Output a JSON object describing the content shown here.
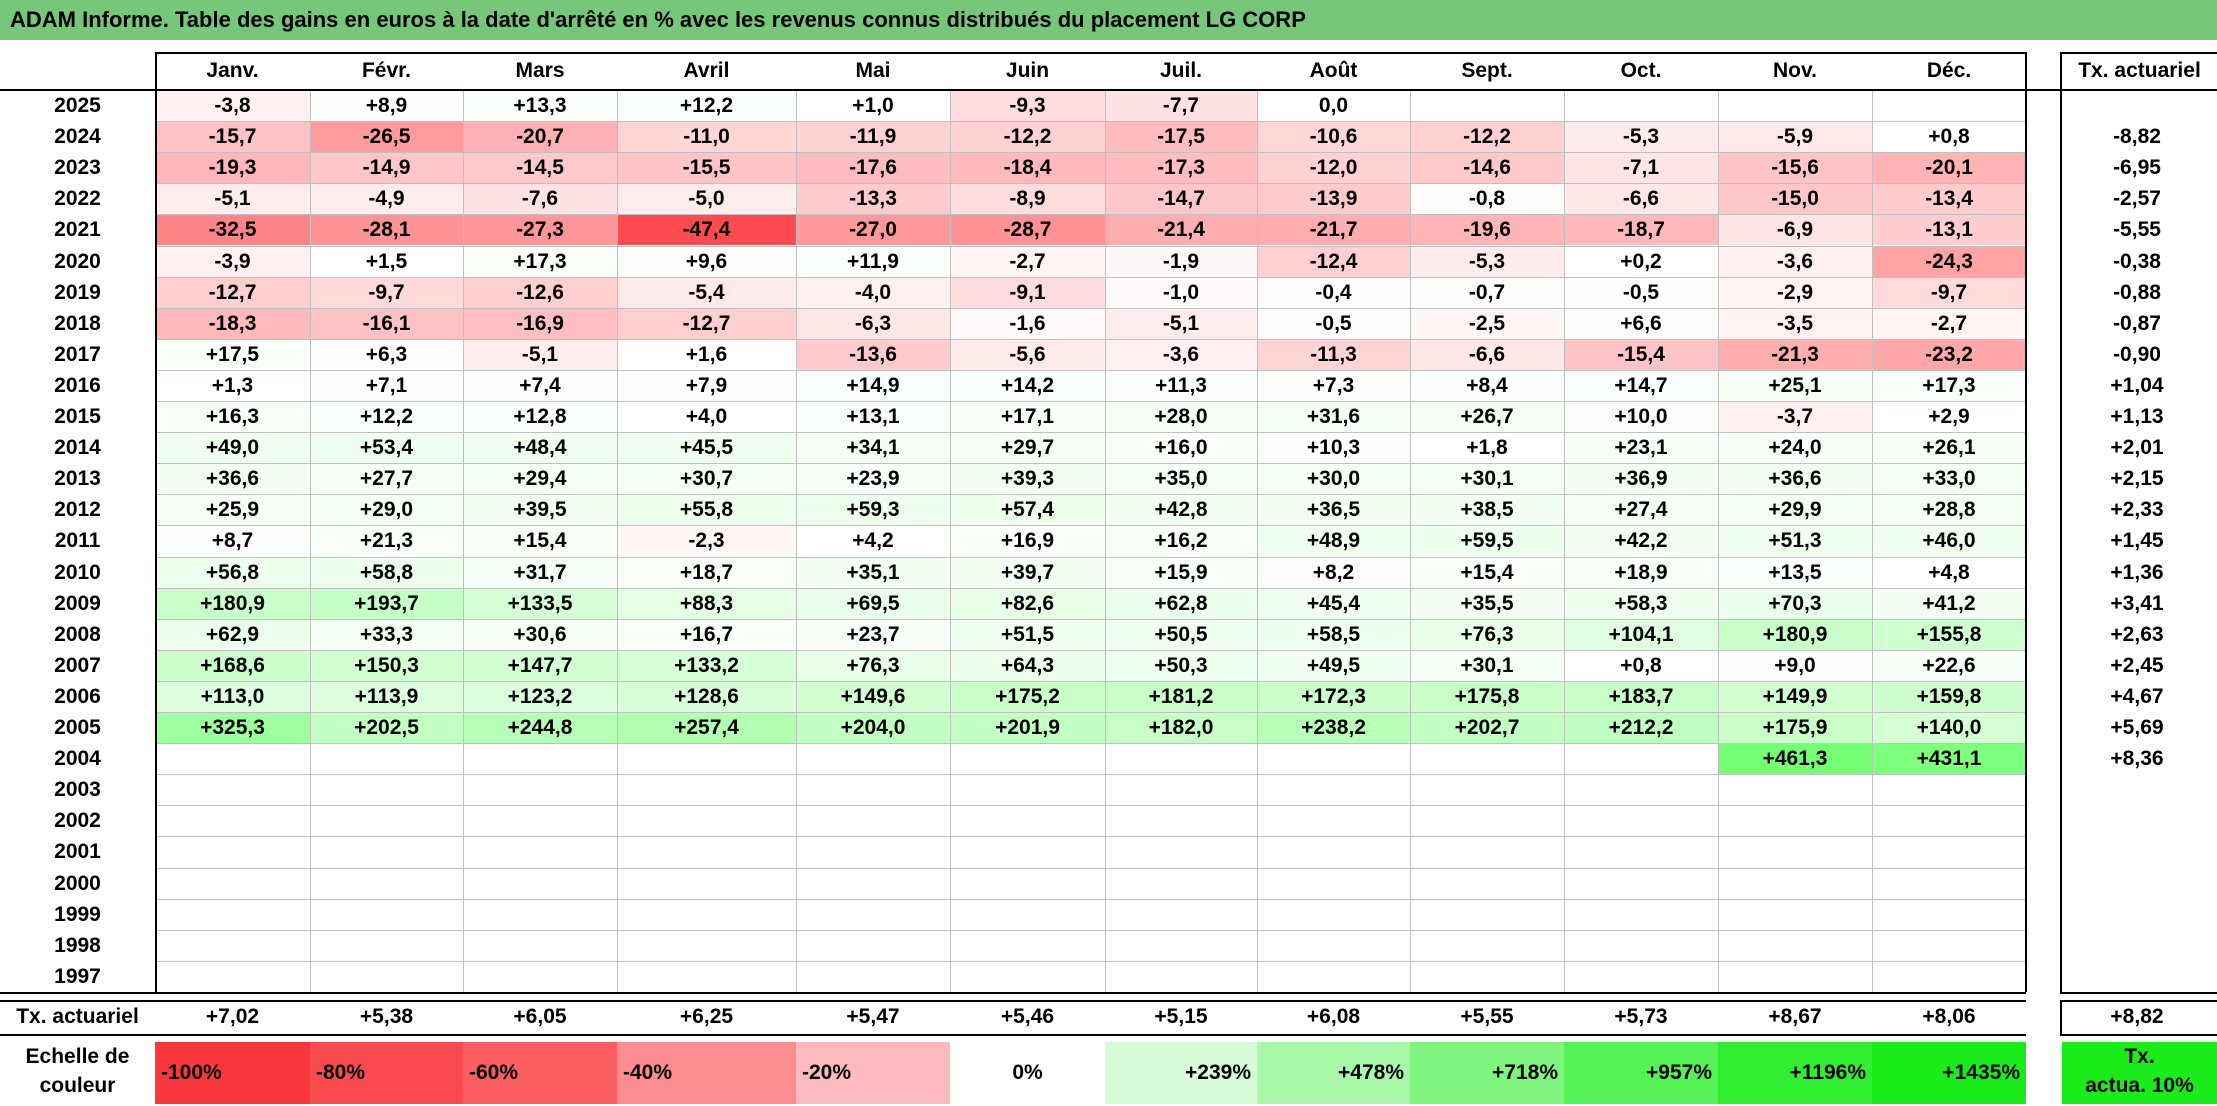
{
  "title": "ADAM Informe. Table des gains en euros à la date d'arrêté en % avec les revenus connus distribués du placement LG CORP",
  "months": [
    "Janv.",
    "Févr.",
    "Mars",
    "Avril",
    "Mai",
    "Juin",
    "Juil.",
    "Août",
    "Sept.",
    "Oct.",
    "Nov.",
    "Déc."
  ],
  "actuarial_header": "Tx. actuariel",
  "rows": [
    {
      "year": "2025",
      "values": [
        "-3,8",
        "+8,9",
        "+13,3",
        "+12,2",
        "+1,0",
        "-9,3",
        "-7,7",
        "0,0",
        "",
        "",
        "",
        ""
      ],
      "rate": ""
    },
    {
      "year": "2024",
      "values": [
        "-15,7",
        "-26,5",
        "-20,7",
        "-11,0",
        "-11,9",
        "-12,2",
        "-17,5",
        "-10,6",
        "-12,2",
        "-5,3",
        "-5,9",
        "+0,8"
      ],
      "rate": "-8,82"
    },
    {
      "year": "2023",
      "values": [
        "-19,3",
        "-14,9",
        "-14,5",
        "-15,5",
        "-17,6",
        "-18,4",
        "-17,3",
        "-12,0",
        "-14,6",
        "-7,1",
        "-15,6",
        "-20,1"
      ],
      "rate": "-6,95"
    },
    {
      "year": "2022",
      "values": [
        "-5,1",
        "-4,9",
        "-7,6",
        "-5,0",
        "-13,3",
        "-8,9",
        "-14,7",
        "-13,9",
        "-0,8",
        "-6,6",
        "-15,0",
        "-13,4"
      ],
      "rate": "-2,57"
    },
    {
      "year": "2021",
      "values": [
        "-32,5",
        "-28,1",
        "-27,3",
        "-47,4",
        "-27,0",
        "-28,7",
        "-21,4",
        "-21,7",
        "-19,6",
        "-18,7",
        "-6,9",
        "-13,1"
      ],
      "rate": "-5,55"
    },
    {
      "year": "2020",
      "values": [
        "-3,9",
        "+1,5",
        "+17,3",
        "+9,6",
        "+11,9",
        "-2,7",
        "-1,9",
        "-12,4",
        "-5,3",
        "+0,2",
        "-3,6",
        "-24,3"
      ],
      "rate": "-0,38"
    },
    {
      "year": "2019",
      "values": [
        "-12,7",
        "-9,7",
        "-12,6",
        "-5,4",
        "-4,0",
        "-9,1",
        "-1,0",
        "-0,4",
        "-0,7",
        "-0,5",
        "-2,9",
        "-9,7"
      ],
      "rate": "-0,88"
    },
    {
      "year": "2018",
      "values": [
        "-18,3",
        "-16,1",
        "-16,9",
        "-12,7",
        "-6,3",
        "-1,6",
        "-5,1",
        "-0,5",
        "-2,5",
        "+6,6",
        "-3,5",
        "-2,7"
      ],
      "rate": "-0,87"
    },
    {
      "year": "2017",
      "values": [
        "+17,5",
        "+6,3",
        "-5,1",
        "+1,6",
        "-13,6",
        "-5,6",
        "-3,6",
        "-11,3",
        "-6,6",
        "-15,4",
        "-21,3",
        "-23,2"
      ],
      "rate": "-0,90"
    },
    {
      "year": "2016",
      "values": [
        "+1,3",
        "+7,1",
        "+7,4",
        "+7,9",
        "+14,9",
        "+14,2",
        "+11,3",
        "+7,3",
        "+8,4",
        "+14,7",
        "+25,1",
        "+17,3"
      ],
      "rate": "+1,04"
    },
    {
      "year": "2015",
      "values": [
        "+16,3",
        "+12,2",
        "+12,8",
        "+4,0",
        "+13,1",
        "+17,1",
        "+28,0",
        "+31,6",
        "+26,7",
        "+10,0",
        "-3,7",
        "+2,9"
      ],
      "rate": "+1,13"
    },
    {
      "year": "2014",
      "values": [
        "+49,0",
        "+53,4",
        "+48,4",
        "+45,5",
        "+34,1",
        "+29,7",
        "+16,0",
        "+10,3",
        "+1,8",
        "+23,1",
        "+24,0",
        "+26,1"
      ],
      "rate": "+2,01"
    },
    {
      "year": "2013",
      "values": [
        "+36,6",
        "+27,7",
        "+29,4",
        "+30,7",
        "+23,9",
        "+39,3",
        "+35,0",
        "+30,0",
        "+30,1",
        "+36,9",
        "+36,6",
        "+33,0"
      ],
      "rate": "+2,15"
    },
    {
      "year": "2012",
      "values": [
        "+25,9",
        "+29,0",
        "+39,5",
        "+55,8",
        "+59,3",
        "+57,4",
        "+42,8",
        "+36,5",
        "+38,5",
        "+27,4",
        "+29,9",
        "+28,8"
      ],
      "rate": "+2,33"
    },
    {
      "year": "2011",
      "values": [
        "+8,7",
        "+21,3",
        "+15,4",
        "-2,3",
        "+4,2",
        "+16,9",
        "+16,2",
        "+48,9",
        "+59,5",
        "+42,2",
        "+51,3",
        "+46,0"
      ],
      "rate": "+1,45"
    },
    {
      "year": "2010",
      "values": [
        "+56,8",
        "+58,8",
        "+31,7",
        "+18,7",
        "+35,1",
        "+39,7",
        "+15,9",
        "+8,2",
        "+15,4",
        "+18,9",
        "+13,5",
        "+4,8"
      ],
      "rate": "+1,36"
    },
    {
      "year": "2009",
      "values": [
        "+180,9",
        "+193,7",
        "+133,5",
        "+88,3",
        "+69,5",
        "+82,6",
        "+62,8",
        "+45,4",
        "+35,5",
        "+58,3",
        "+70,3",
        "+41,2"
      ],
      "rate": "+3,41"
    },
    {
      "year": "2008",
      "values": [
        "+62,9",
        "+33,3",
        "+30,6",
        "+16,7",
        "+23,7",
        "+51,5",
        "+50,5",
        "+58,5",
        "+76,3",
        "+104,1",
        "+180,9",
        "+155,8"
      ],
      "rate": "+2,63"
    },
    {
      "year": "2007",
      "values": [
        "+168,6",
        "+150,3",
        "+147,7",
        "+133,2",
        "+76,3",
        "+64,3",
        "+50,3",
        "+49,5",
        "+30,1",
        "+0,8",
        "+9,0",
        "+22,6"
      ],
      "rate": "+2,45"
    },
    {
      "year": "2006",
      "values": [
        "+113,0",
        "+113,9",
        "+123,2",
        "+128,6",
        "+149,6",
        "+175,2",
        "+181,2",
        "+172,3",
        "+175,8",
        "+183,7",
        "+149,9",
        "+159,8"
      ],
      "rate": "+4,67"
    },
    {
      "year": "2005",
      "values": [
        "+325,3",
        "+202,5",
        "+244,8",
        "+257,4",
        "+204,0",
        "+201,9",
        "+182,0",
        "+238,2",
        "+202,7",
        "+212,2",
        "+175,9",
        "+140,0"
      ],
      "rate": "+5,69"
    },
    {
      "year": "2004",
      "values": [
        "",
        "",
        "",
        "",
        "",
        "",
        "",
        "",
        "",
        "",
        "+461,3",
        "+431,1"
      ],
      "rate": "+8,36"
    },
    {
      "year": "2003",
      "values": [
        "",
        "",
        "",
        "",
        "",
        "",
        "",
        "",
        "",
        "",
        "",
        ""
      ],
      "rate": ""
    },
    {
      "year": "2002",
      "values": [
        "",
        "",
        "",
        "",
        "",
        "",
        "",
        "",
        "",
        "",
        "",
        ""
      ],
      "rate": ""
    },
    {
      "year": "2001",
      "values": [
        "",
        "",
        "",
        "",
        "",
        "",
        "",
        "",
        "",
        "",
        "",
        ""
      ],
      "rate": ""
    },
    {
      "year": "2000",
      "values": [
        "",
        "",
        "",
        "",
        "",
        "",
        "",
        "",
        "",
        "",
        "",
        ""
      ],
      "rate": ""
    },
    {
      "year": "1999",
      "values": [
        "",
        "",
        "",
        "",
        "",
        "",
        "",
        "",
        "",
        "",
        "",
        ""
      ],
      "rate": ""
    },
    {
      "year": "1998",
      "values": [
        "",
        "",
        "",
        "",
        "",
        "",
        "",
        "",
        "",
        "",
        "",
        ""
      ],
      "rate": ""
    },
    {
      "year": "1997",
      "values": [
        "",
        "",
        "",
        "",
        "",
        "",
        "",
        "",
        "",
        "",
        "",
        ""
      ],
      "rate": ""
    }
  ],
  "footer_row": {
    "label": "Tx. actuariel",
    "values": [
      "+7,02",
      "+5,38",
      "+6,05",
      "+6,25",
      "+5,47",
      "+5,46",
      "+5,15",
      "+6,08",
      "+5,55",
      "+5,73",
      "+8,67",
      "+8,06"
    ],
    "rate": "+8,82"
  },
  "scale": {
    "label_line1": "Echelle de",
    "label_line2": "couleur",
    "steps": [
      {
        "text": "-100%",
        "color": "#f8383d",
        "align": "left"
      },
      {
        "text": "-80%",
        "color": "#f94a4f",
        "align": "left"
      },
      {
        "text": "-60%",
        "color": "#fb5e62",
        "align": "left"
      },
      {
        "text": "-40%",
        "color": "#fc8c8f",
        "align": "left"
      },
      {
        "text": "-20%",
        "color": "#fdbabc",
        "align": "left"
      },
      {
        "text": "0%",
        "color": "#ffffff",
        "align": "center"
      },
      {
        "text": "+239%",
        "color": "#d6fbd6",
        "align": "right"
      },
      {
        "text": "+478%",
        "color": "#a9f8a9",
        "align": "right"
      },
      {
        "text": "+718%",
        "color": "#7ff57f",
        "align": "right"
      },
      {
        "text": "+957%",
        "color": "#55f255",
        "align": "right"
      },
      {
        "text": "+1196%",
        "color": "#32ee32",
        "align": "right"
      },
      {
        "text": "+1435%",
        "color": "#1aeb1a",
        "align": "right"
      }
    ],
    "actua_line1": "Tx.",
    "actua_line2": "actua. 10%",
    "actua_color": "#1aeb1a"
  },
  "colors": {
    "title_bg": "#77c77a",
    "negative_base": "#f8383d",
    "positive_base": "#1aeb1a"
  }
}
